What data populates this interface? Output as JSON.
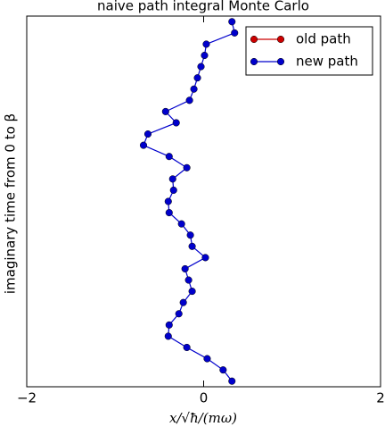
{
  "chart_data": {
    "type": "line",
    "title": "naive path integral Monte Carlo",
    "xlabel": "x/√ħ/(mω)",
    "ylabel": "imaginary time from 0 to β",
    "xlim": [
      -2,
      2
    ],
    "xticks": [
      {
        "value": -2,
        "label": "−2"
      },
      0,
      2
    ],
    "ylim": [
      -0.5,
      32.5
    ],
    "legend": "upper right",
    "series": [
      {
        "name": "old path",
        "color": "#cc0000",
        "x": [],
        "values": []
      },
      {
        "name": "new path",
        "color": "#0000cc",
        "x": [
          0.32,
          0.22,
          0.04,
          -0.19,
          -0.4,
          -0.39,
          -0.28,
          -0.23,
          -0.13,
          -0.17,
          -0.21,
          0.02,
          -0.13,
          -0.15,
          -0.25,
          -0.39,
          -0.4,
          -0.34,
          -0.35,
          -0.19,
          -0.39,
          -0.68,
          -0.63,
          -0.31,
          -0.43,
          -0.16,
          -0.11,
          -0.07,
          -0.03,
          0.01,
          0.03,
          0.35,
          0.32
        ],
        "values": [
          0,
          1,
          2,
          3,
          4,
          5,
          6,
          7,
          8,
          9,
          10,
          11,
          12,
          13,
          14,
          15,
          16,
          17,
          18,
          19,
          20,
          21,
          22,
          23,
          24,
          25,
          26,
          27,
          28,
          29,
          30,
          31,
          32
        ]
      }
    ]
  }
}
